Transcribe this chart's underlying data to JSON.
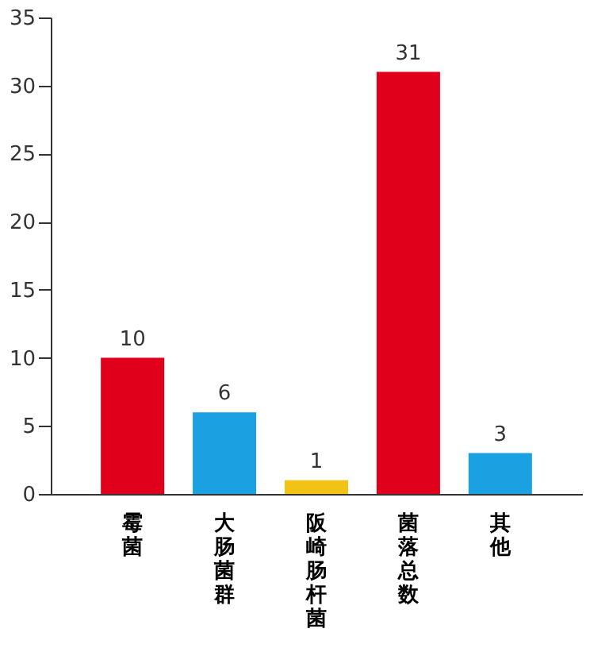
{
  "chart_data": {
    "type": "bar",
    "categories": [
      "霉菌",
      "大肠菌群",
      "阪崎肠杆菌",
      "菌落总数",
      "其他"
    ],
    "values": [
      10,
      6,
      1,
      31,
      3
    ],
    "colors": [
      "#e0001b",
      "#1ba1e2",
      "#f2c314",
      "#e0001b",
      "#1ba1e2"
    ],
    "ylim": [
      0,
      35
    ],
    "yticks": [
      0,
      5,
      10,
      15,
      20,
      25,
      30,
      35
    ],
    "data_labels": true,
    "grid": false
  }
}
